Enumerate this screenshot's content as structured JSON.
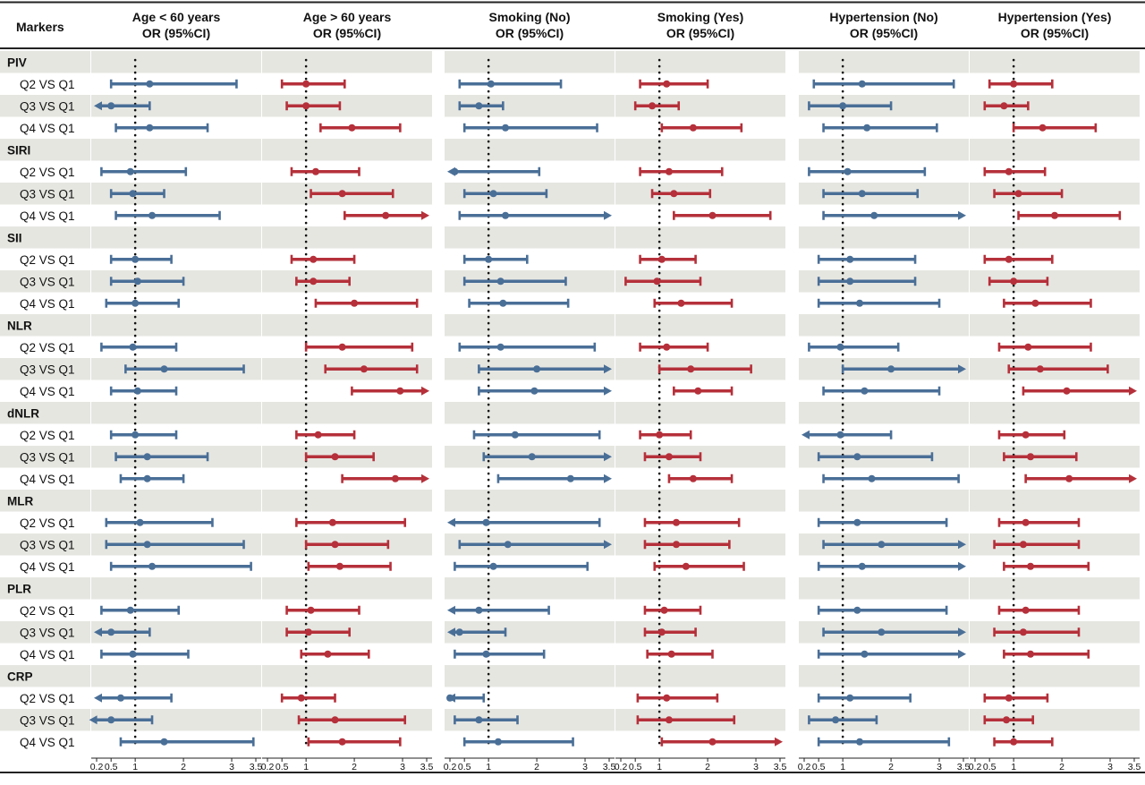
{
  "chart_data": {
    "type": "forest",
    "row_header": "Markers",
    "x_ticks": [
      0.2,
      0.5,
      1,
      2,
      3,
      3.5
    ],
    "tick_labels": [
      "0.2",
      "0.5",
      "1",
      "2",
      "3",
      "3.5"
    ],
    "xlim": [
      0.2,
      3.5
    ],
    "reference_line": 1,
    "colors": {
      "blue": "#4a6f97",
      "red": "#b5303a",
      "band": "#e6e6e1"
    },
    "subgroups": [
      {
        "name": "Age < 60 years",
        "measure": "OR (95%CI)",
        "color": "blue"
      },
      {
        "name": "Age > 60 years",
        "measure": "OR (95%CI)",
        "color": "red"
      },
      {
        "name": "Smoking (No)",
        "measure": "OR (95%CI)",
        "color": "blue"
      },
      {
        "name": "Smoking (Yes)",
        "measure": "OR (95%CI)",
        "color": "red"
      },
      {
        "name": "Hypertension (No)",
        "measure": "OR (95%CI)",
        "color": "blue"
      },
      {
        "name": "Hypertension (Yes)",
        "measure": "OR (95%CI)",
        "color": "red"
      }
    ],
    "markers": [
      {
        "name": "PIV",
        "comparisons": [
          {
            "label": "Q2 VS Q1",
            "values": [
              [
                1.3,
                0.5,
                3.1
              ],
              [
                1.0,
                0.5,
                1.8
              ],
              [
                1.05,
                0.4,
                2.5
              ],
              [
                1.15,
                0.6,
                2.0
              ],
              [
                1.4,
                0.4,
                3.3
              ],
              [
                1.0,
                0.5,
                1.8
              ]
            ]
          },
          {
            "label": "Q3 VS Q1",
            "values": [
              [
                0.5,
                0.2,
                1.3
              ],
              [
                1.0,
                0.6,
                1.7
              ],
              [
                0.8,
                0.4,
                1.3
              ],
              [
                0.85,
                0.5,
                1.4
              ],
              [
                1.0,
                0.3,
                2.0
              ],
              [
                0.8,
                0.4,
                1.3
              ]
            ]
          },
          {
            "label": "Q4 VS Q1",
            "values": [
              [
                1.3,
                0.6,
                2.5
              ],
              [
                1.95,
                1.3,
                2.95
              ],
              [
                1.35,
                0.5,
                3.25
              ],
              [
                1.7,
                1.05,
                2.7
              ],
              [
                1.5,
                0.6,
                2.95
              ],
              [
                1.6,
                1.0,
                2.7
              ]
            ]
          }
        ]
      },
      {
        "name": "SIRI",
        "comparisons": [
          {
            "label": "Q2 VS Q1",
            "values": [
              [
                0.9,
                0.3,
                2.05
              ],
              [
                1.2,
                0.7,
                2.1
              ],
              [
                0.3,
                0.2,
                2.05
              ],
              [
                1.2,
                0.6,
                2.3
              ],
              [
                1.1,
                0.3,
                2.7
              ],
              [
                0.9,
                0.4,
                1.65
              ]
            ]
          },
          {
            "label": "Q3 VS Q1",
            "values": [
              [
                0.95,
                0.5,
                1.6
              ],
              [
                1.75,
                1.1,
                2.8
              ],
              [
                1.1,
                0.5,
                2.2
              ],
              [
                1.3,
                0.85,
                2.05
              ],
              [
                1.4,
                0.6,
                2.55
              ],
              [
                1.1,
                0.6,
                2.0
              ]
            ]
          },
          {
            "label": "Q4 VS Q1",
            "values": [
              [
                1.35,
                0.6,
                2.75
              ],
              [
                2.65,
                1.8,
                3.5
              ],
              [
                1.35,
                0.4,
                3.5
              ],
              [
                2.1,
                1.3,
                3.3
              ],
              [
                1.65,
                0.6,
                3.5
              ],
              [
                1.85,
                1.1,
                3.2
              ]
            ]
          }
        ]
      },
      {
        "name": "SII",
        "comparisons": [
          {
            "label": "Q2 VS Q1",
            "values": [
              [
                1.0,
                0.5,
                1.75
              ],
              [
                1.15,
                0.7,
                2.0
              ],
              [
                1.0,
                0.5,
                1.8
              ],
              [
                1.05,
                0.6,
                1.75
              ],
              [
                1.15,
                0.5,
                2.5
              ],
              [
                0.9,
                0.4,
                1.8
              ]
            ]
          },
          {
            "label": "Q3 VS Q1",
            "values": [
              [
                1.05,
                0.5,
                2.0
              ],
              [
                1.15,
                0.8,
                1.9
              ],
              [
                1.25,
                0.5,
                2.6
              ],
              [
                0.95,
                0.3,
                1.85
              ],
              [
                1.15,
                0.5,
                2.5
              ],
              [
                1.0,
                0.5,
                1.7
              ]
            ]
          },
          {
            "label": "Q4 VS Q1",
            "values": [
              [
                1.0,
                0.4,
                1.9
              ],
              [
                2.0,
                1.2,
                3.3
              ],
              [
                1.3,
                0.6,
                2.65
              ],
              [
                1.45,
                0.9,
                2.5
              ],
              [
                1.35,
                0.5,
                3.0
              ],
              [
                1.45,
                0.8,
                2.6
              ]
            ]
          }
        ]
      },
      {
        "name": "NLR",
        "comparisons": [
          {
            "label": "Q2 VS Q1",
            "values": [
              [
                0.95,
                0.3,
                1.85
              ],
              [
                1.75,
                1.0,
                3.2
              ],
              [
                1.25,
                0.4,
                3.2
              ],
              [
                1.15,
                0.6,
                2.0
              ],
              [
                0.95,
                0.3,
                2.15
              ],
              [
                1.3,
                0.7,
                2.6
              ]
            ]
          },
          {
            "label": "Q3 VS Q1",
            "values": [
              [
                1.6,
                0.8,
                3.25
              ],
              [
                2.2,
                1.4,
                3.3
              ],
              [
                2.0,
                0.8,
                3.5
              ],
              [
                1.65,
                1.0,
                2.9
              ],
              [
                2.0,
                1.0,
                3.5
              ],
              [
                1.55,
                0.9,
                2.95
              ]
            ]
          },
          {
            "label": "Q4 VS Q1",
            "values": [
              [
                1.05,
                0.5,
                1.85
              ],
              [
                2.95,
                1.95,
                3.5
              ],
              [
                1.95,
                0.8,
                3.5
              ],
              [
                1.8,
                1.3,
                2.5
              ],
              [
                1.45,
                0.6,
                3.0
              ],
              [
                2.1,
                1.2,
                3.5
              ]
            ]
          }
        ]
      },
      {
        "name": "dNLR",
        "comparisons": [
          {
            "label": "Q2 VS Q1",
            "values": [
              [
                1.0,
                0.5,
                1.85
              ],
              [
                1.25,
                0.8,
                2.0
              ],
              [
                1.55,
                0.7,
                3.3
              ],
              [
                1.0,
                0.6,
                1.65
              ],
              [
                0.95,
                0.2,
                2.0
              ],
              [
                1.25,
                0.7,
                2.05
              ]
            ]
          },
          {
            "label": "Q3 VS Q1",
            "values": [
              [
                1.25,
                0.6,
                2.5
              ],
              [
                1.6,
                1.0,
                2.4
              ],
              [
                1.9,
                0.9,
                3.5
              ],
              [
                1.2,
                0.7,
                1.85
              ],
              [
                1.3,
                0.5,
                2.85
              ],
              [
                1.35,
                0.8,
                2.3
              ]
            ]
          },
          {
            "label": "Q4 VS Q1",
            "values": [
              [
                1.25,
                0.7,
                2.0
              ],
              [
                2.85,
                1.75,
                3.5
              ],
              [
                2.7,
                1.2,
                3.5
              ],
              [
                1.7,
                1.2,
                2.5
              ],
              [
                1.6,
                0.6,
                3.4
              ],
              [
                2.15,
                1.25,
                3.5
              ]
            ]
          }
        ]
      },
      {
        "name": "MLR",
        "comparisons": [
          {
            "label": "Q2 VS Q1",
            "values": [
              [
                1.1,
                0.4,
                2.6
              ],
              [
                1.55,
                0.8,
                3.05
              ],
              [
                0.95,
                0.2,
                3.3
              ],
              [
                1.35,
                0.7,
                2.65
              ],
              [
                1.3,
                0.5,
                3.15
              ],
              [
                1.25,
                0.7,
                2.35
              ]
            ]
          },
          {
            "label": "Q3 VS Q1",
            "values": [
              [
                1.25,
                0.4,
                3.25
              ],
              [
                1.6,
                1.0,
                2.7
              ],
              [
                1.4,
                0.4,
                3.5
              ],
              [
                1.35,
                0.7,
                2.45
              ],
              [
                1.8,
                0.6,
                3.5
              ],
              [
                1.2,
                0.6,
                2.35
              ]
            ]
          },
          {
            "label": "Q4 VS Q1",
            "values": [
              [
                1.35,
                0.5,
                3.4
              ],
              [
                1.7,
                1.05,
                2.75
              ],
              [
                1.1,
                0.3,
                3.05
              ],
              [
                1.55,
                0.9,
                2.75
              ],
              [
                1.4,
                0.5,
                3.5
              ],
              [
                1.35,
                0.8,
                2.55
              ]
            ]
          }
        ]
      },
      {
        "name": "PLR",
        "comparisons": [
          {
            "label": "Q2 VS Q1",
            "values": [
              [
                0.9,
                0.3,
                1.9
              ],
              [
                1.1,
                0.6,
                2.1
              ],
              [
                0.8,
                0.2,
                2.25
              ],
              [
                1.1,
                0.7,
                1.85
              ],
              [
                1.3,
                0.5,
                3.15
              ],
              [
                1.25,
                0.7,
                2.35
              ]
            ]
          },
          {
            "label": "Q3 VS Q1",
            "values": [
              [
                0.5,
                0.2,
                1.3
              ],
              [
                1.05,
                0.6,
                1.9
              ],
              [
                0.4,
                0.2,
                1.35
              ],
              [
                1.05,
                0.7,
                1.75
              ],
              [
                1.8,
                0.6,
                3.5
              ],
              [
                1.2,
                0.6,
                2.35
              ]
            ]
          },
          {
            "label": "Q4 VS Q1",
            "values": [
              [
                0.95,
                0.3,
                2.1
              ],
              [
                1.45,
                0.9,
                2.3
              ],
              [
                0.95,
                0.3,
                2.15
              ],
              [
                1.25,
                0.75,
                2.1
              ],
              [
                1.45,
                0.5,
                3.5
              ],
              [
                1.35,
                0.8,
                2.55
              ]
            ]
          }
        ]
      },
      {
        "name": "CRP",
        "comparisons": [
          {
            "label": "Q2 VS Q1",
            "values": [
              [
                0.7,
                0.2,
                1.75
              ],
              [
                0.9,
                0.5,
                1.6
              ],
              [
                0.2,
                0.2,
                0.9
              ],
              [
                1.15,
                0.55,
                2.2
              ],
              [
                1.15,
                0.5,
                2.4
              ],
              [
                0.9,
                0.4,
                1.7
              ]
            ]
          },
          {
            "label": "Q3 VS Q1",
            "values": [
              [
                0.5,
                0.1,
                1.35
              ],
              [
                1.6,
                0.85,
                3.05
              ],
              [
                0.8,
                0.3,
                1.6
              ],
              [
                1.2,
                0.55,
                2.55
              ],
              [
                0.85,
                0.3,
                1.7
              ],
              [
                0.85,
                0.4,
                1.4
              ]
            ]
          },
          {
            "label": "Q4 VS Q1",
            "values": [
              [
                1.6,
                0.7,
                3.45
              ],
              [
                1.75,
                1.05,
                2.95
              ],
              [
                1.2,
                0.5,
                2.75
              ],
              [
                2.1,
                1.05,
                3.5
              ],
              [
                1.35,
                0.5,
                3.2
              ],
              [
                1.0,
                0.6,
                1.8
              ]
            ]
          }
        ]
      }
    ]
  }
}
